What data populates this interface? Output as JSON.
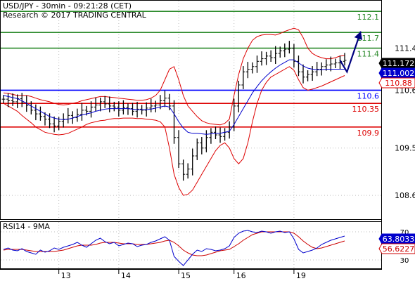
{
  "header": {
    "line1": "USD/JPY - 30min - 09:21:28 (CET)",
    "line2": "Research © 2017 TRADING CENTRAL"
  },
  "chart_data": {
    "type": "line",
    "price_panel": {
      "y_ticks": [
        "111.4",
        "110.6",
        "109.5",
        "108.6"
      ],
      "y_tick_values": [
        111.4,
        110.6,
        109.5,
        108.6
      ],
      "ylim": [
        108.2,
        112.25
      ],
      "resistance_levels": [
        {
          "label": "112.1",
          "value": 112.1,
          "color": "#2a8a2a"
        },
        {
          "label": "111.7",
          "value": 111.7,
          "color": "#2a8a2a"
        },
        {
          "label": "111.4",
          "value": 111.4,
          "color": "#2a8a2a"
        }
      ],
      "pivot_level": {
        "label": "110.6",
        "value": 110.6,
        "color": "#0000ff"
      },
      "support_levels": [
        {
          "label": "110.35",
          "value": 110.35,
          "color": "#dd0000"
        },
        {
          "label": "109.9",
          "value": 109.9,
          "color": "#dd0000"
        }
      ],
      "last_price": {
        "label": "111.172",
        "value": 111.172,
        "bg": "#000000",
        "fg": "#ffffff"
      },
      "ma_value": {
        "label": "111.002",
        "value": 111.002,
        "bg": "#0000cc",
        "fg": "#ffffff"
      },
      "band_value": {
        "label": "110.88",
        "value": 110.88,
        "bg": "#ffffff",
        "fg": "#dd0000"
      },
      "close_series": [
        110.43,
        110.4,
        110.38,
        110.44,
        110.36,
        110.31,
        110.22,
        110.15,
        110.1,
        110.05,
        109.96,
        109.92,
        110.01,
        110.05,
        110.12,
        110.08,
        110.14,
        110.22,
        110.2,
        110.28,
        110.32,
        110.38,
        110.34,
        110.3,
        110.28,
        110.22,
        110.27,
        110.25,
        110.2,
        110.24,
        110.22,
        110.26,
        110.3,
        110.32,
        110.4,
        110.45,
        110.3,
        109.7,
        109.2,
        109.0,
        109.1,
        109.35,
        109.6,
        109.5,
        109.7,
        109.8,
        109.75,
        109.72,
        109.8,
        109.9,
        110.3,
        110.7,
        110.95,
        111.0,
        111.05,
        111.15,
        111.2,
        111.25,
        111.22,
        111.3,
        111.35,
        111.38,
        111.4,
        111.15,
        110.95,
        110.85,
        110.9,
        110.95,
        111.0,
        111.05,
        111.08,
        111.1,
        111.12,
        111.15,
        111.17
      ],
      "ma_series": [
        110.5,
        110.48,
        110.46,
        110.44,
        110.4,
        110.35,
        110.3,
        110.25,
        110.2,
        110.15,
        110.1,
        110.07,
        110.05,
        110.04,
        110.05,
        110.07,
        110.1,
        110.13,
        110.15,
        110.17,
        110.2,
        110.22,
        110.24,
        110.25,
        110.25,
        110.25,
        110.25,
        110.25,
        110.24,
        110.23,
        110.23,
        110.23,
        110.24,
        110.26,
        110.28,
        110.3,
        110.28,
        110.15,
        110.0,
        109.88,
        109.8,
        109.78,
        109.78,
        109.77,
        109.76,
        109.77,
        109.78,
        109.78,
        109.8,
        109.82,
        109.95,
        110.1,
        110.25,
        110.4,
        110.55,
        110.67,
        110.78,
        110.87,
        110.95,
        111.02,
        111.08,
        111.13,
        111.18,
        111.18,
        111.12,
        111.06,
        111.02,
        111.0,
        110.99,
        110.99,
        111.0,
        111.0,
        111.0,
        111.0,
        111.0
      ],
      "upper_band": [
        110.55,
        110.54,
        110.52,
        110.5,
        110.5,
        110.5,
        110.48,
        110.45,
        110.42,
        110.4,
        110.38,
        110.35,
        110.33,
        110.32,
        110.33,
        110.35,
        110.37,
        110.4,
        110.42,
        110.44,
        110.46,
        110.48,
        110.48,
        110.47,
        110.46,
        110.45,
        110.44,
        110.43,
        110.42,
        110.41,
        110.41,
        110.42,
        110.45,
        110.5,
        110.6,
        110.8,
        111.0,
        111.05,
        110.8,
        110.5,
        110.3,
        110.2,
        110.1,
        110.02,
        109.98,
        109.96,
        109.95,
        109.94,
        109.97,
        110.05,
        110.5,
        110.9,
        111.2,
        111.4,
        111.55,
        111.62,
        111.65,
        111.66,
        111.66,
        111.65,
        111.68,
        111.72,
        111.75,
        111.78,
        111.75,
        111.6,
        111.4,
        111.3,
        111.25,
        111.22,
        111.2,
        111.2,
        111.22,
        111.25,
        111.26
      ],
      "lower_band": [
        110.35,
        110.3,
        110.25,
        110.2,
        110.12,
        110.05,
        109.98,
        109.9,
        109.85,
        109.8,
        109.78,
        109.76,
        109.75,
        109.76,
        109.78,
        109.82,
        109.86,
        109.9,
        109.95,
        109.98,
        110.0,
        110.02,
        110.03,
        110.05,
        110.06,
        110.06,
        110.07,
        110.07,
        110.07,
        110.06,
        110.06,
        110.05,
        110.04,
        110.03,
        110.0,
        109.9,
        109.5,
        109.0,
        108.75,
        108.6,
        108.62,
        108.7,
        108.85,
        109.0,
        109.15,
        109.3,
        109.45,
        109.55,
        109.6,
        109.5,
        109.3,
        109.2,
        109.3,
        109.6,
        110.0,
        110.35,
        110.6,
        110.75,
        110.85,
        110.9,
        110.95,
        111.0,
        111.05,
        110.98,
        110.8,
        110.65,
        110.6,
        110.62,
        110.65,
        110.68,
        110.72,
        110.76,
        110.8,
        110.84,
        110.88
      ],
      "forecast_arrow": [
        {
          "i": 73,
          "v": 111.17
        },
        {
          "i": 74.5,
          "v": 110.95
        },
        {
          "i": 77.5,
          "v": 111.72
        }
      ]
    },
    "rsi_panel": {
      "label": "RSI14 - 9MA",
      "y_ticks": [
        "70",
        "30"
      ],
      "y_tick_values": [
        70,
        30
      ],
      "ylim": [
        20,
        82
      ],
      "rsi_value": {
        "label": "63.8033",
        "value": 63.8033
      },
      "ma_value": {
        "label": "56.6227",
        "value": 56.6227
      },
      "rsi_series": [
        45,
        47,
        44,
        43,
        46,
        42,
        40,
        38,
        44,
        41,
        43,
        47,
        45,
        48,
        50,
        52,
        55,
        51,
        48,
        53,
        58,
        61,
        56,
        53,
        55,
        50,
        52,
        54,
        53,
        49,
        51,
        52,
        55,
        57,
        60,
        63,
        58,
        35,
        28,
        22,
        30,
        38,
        44,
        42,
        46,
        45,
        43,
        44,
        46,
        50,
        62,
        68,
        71,
        72,
        70,
        69,
        71,
        70,
        68,
        70,
        71,
        69,
        70,
        60,
        45,
        40,
        42,
        44,
        47,
        52,
        55,
        58,
        60,
        62,
        64
      ],
      "ma_series": [
        44,
        45,
        45,
        45,
        45,
        44,
        43,
        42,
        42,
        42,
        42,
        42,
        43,
        44,
        46,
        48,
        50,
        51,
        51,
        51,
        52,
        54,
        55,
        55,
        55,
        54,
        53,
        53,
        53,
        52,
        52,
        52,
        53,
        54,
        55,
        57,
        58,
        55,
        50,
        44,
        40,
        37,
        36,
        36,
        37,
        39,
        41,
        43,
        44,
        45,
        49,
        53,
        58,
        62,
        66,
        68,
        70,
        70,
        70,
        70,
        70,
        70,
        70,
        68,
        63,
        57,
        52,
        48,
        46,
        47,
        49,
        51,
        53,
        55,
        57
      ]
    },
    "x_ticks": [
      "13",
      "14",
      "15",
      "16",
      "19"
    ],
    "x_tick_index": [
      12,
      25,
      38,
      50,
      63
    ]
  }
}
